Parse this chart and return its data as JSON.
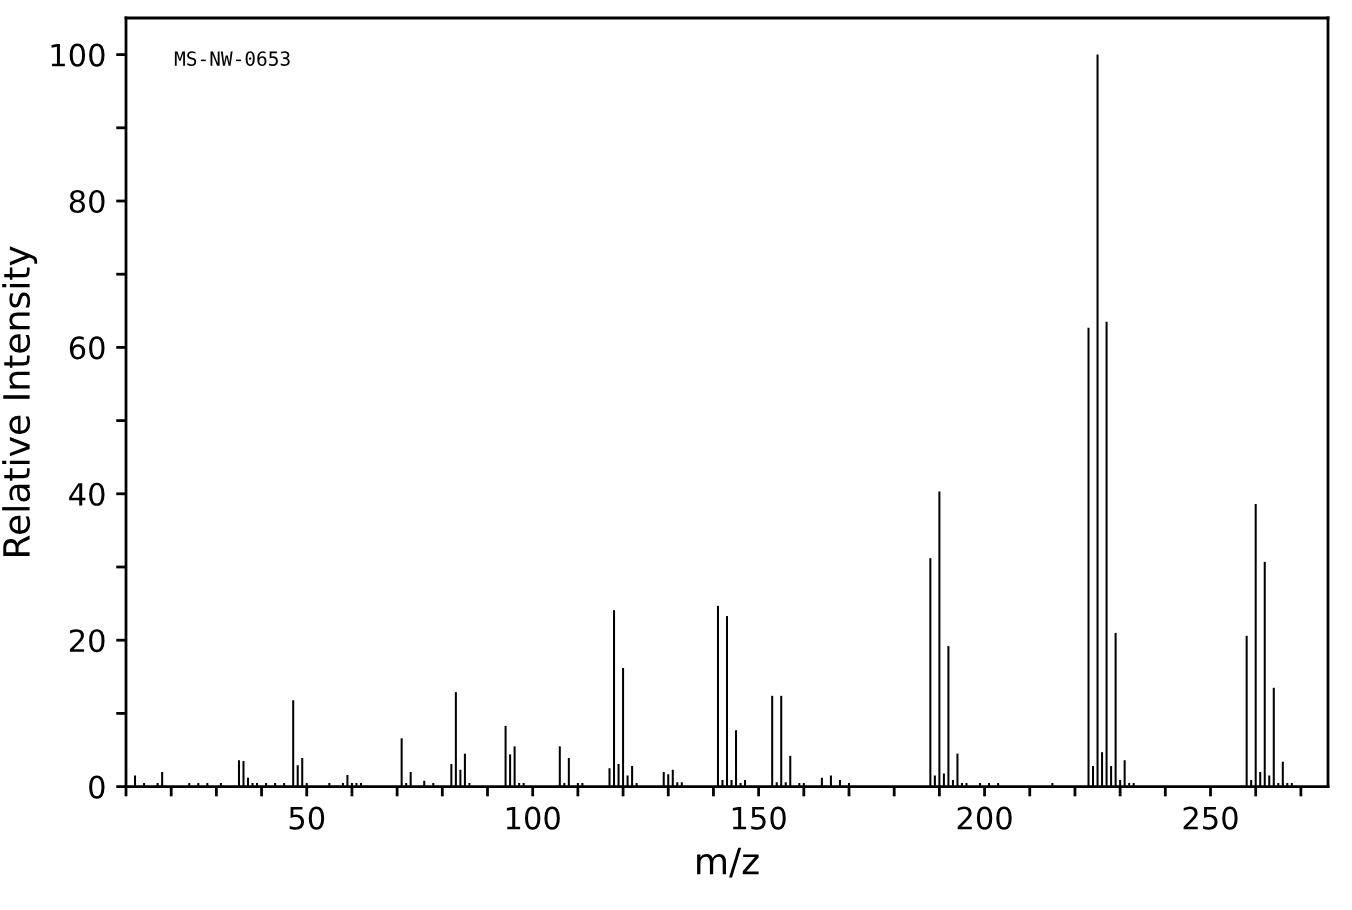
{
  "chart_data": {
    "type": "bar",
    "xlabel": "m/z",
    "ylabel": "Relative Intensity",
    "annotations": [
      "MS-NW-0653"
    ],
    "x": [
      12,
      14,
      17,
      18,
      24,
      26,
      28,
      31,
      35,
      36,
      37,
      38,
      39,
      41,
      43,
      45,
      47,
      48,
      49,
      50,
      55,
      58,
      59,
      60,
      61,
      62,
      71,
      72,
      73,
      76,
      78,
      82,
      83,
      84,
      85,
      86,
      94,
      95,
      96,
      97,
      98,
      106,
      107,
      108,
      110,
      111,
      117,
      118,
      119,
      120,
      121,
      122,
      123,
      129,
      130,
      131,
      132,
      133,
      141,
      142,
      143,
      144,
      145,
      146,
      147,
      153,
      154,
      155,
      156,
      157,
      159,
      160,
      164,
      166,
      168,
      170,
      188,
      189,
      190,
      191,
      192,
      193,
      194,
      195,
      196,
      199,
      201,
      203,
      215,
      223,
      224,
      225,
      226,
      227,
      228,
      229,
      230,
      231,
      232,
      233,
      258,
      259,
      260,
      261,
      262,
      263,
      264,
      265,
      266,
      267,
      268
    ],
    "values": [
      1.5,
      0.5,
      0.5,
      2.0,
      0.5,
      0.5,
      0.5,
      0.5,
      3.6,
      3.5,
      1.2,
      0.5,
      0.5,
      0.5,
      0.5,
      0.5,
      11.8,
      2.9,
      3.9,
      0.5,
      0.5,
      0.5,
      1.6,
      0.5,
      0.5,
      0.5,
      6.6,
      0.5,
      2.0,
      0.8,
      0.5,
      3.1,
      12.9,
      2.3,
      4.5,
      0.5,
      8.3,
      4.4,
      5.5,
      0.5,
      0.5,
      5.5,
      0.5,
      3.9,
      0.5,
      0.5,
      2.5,
      24.1,
      3.1,
      16.2,
      1.5,
      2.8,
      0.5,
      2.0,
      1.7,
      2.3,
      0.6,
      0.6,
      24.7,
      0.9,
      23.3,
      0.9,
      7.7,
      0.5,
      0.9,
      12.4,
      0.6,
      12.4,
      0.6,
      4.2,
      0.5,
      0.5,
      1.2,
      1.5,
      0.9,
      0.5,
      31.2,
      1.5,
      40.3,
      1.8,
      19.2,
      0.9,
      4.5,
      0.5,
      0.5,
      0.5,
      0.5,
      0.5,
      0.5,
      62.7,
      2.8,
      100,
      4.7,
      63.5,
      2.8,
      21.0,
      0.9,
      3.6,
      0.5,
      0.5,
      20.6,
      0.9,
      38.6,
      2.0,
      30.7,
      1.5,
      13.5,
      0.5,
      3.4,
      0.5,
      0.5
    ],
    "color": "#000000",
    "xlim": [
      10,
      276
    ],
    "xticks": [
      {
        "value": 10,
        "label": null
      },
      {
        "value": 20,
        "label": null
      },
      {
        "value": 30,
        "label": null
      },
      {
        "value": 40,
        "label": null
      },
      50,
      {
        "value": 60,
        "label": null
      },
      {
        "value": 70,
        "label": null
      },
      {
        "value": 80,
        "label": null
      },
      {
        "value": 90,
        "label": null
      },
      100,
      {
        "value": 110,
        "label": null
      },
      {
        "value": 120,
        "label": null
      },
      {
        "value": 130,
        "label": null
      },
      {
        "value": 140,
        "label": null
      },
      150,
      {
        "value": 160,
        "label": null
      },
      {
        "value": 170,
        "label": null
      },
      {
        "value": 180,
        "label": null
      },
      {
        "value": 190,
        "label": null
      },
      200,
      {
        "value": 210,
        "label": null
      },
      {
        "value": 220,
        "label": null
      },
      {
        "value": 230,
        "label": null
      },
      {
        "value": 240,
        "label": null
      },
      250,
      {
        "value": 260,
        "label": null
      },
      {
        "value": 270,
        "label": null
      }
    ],
    "ylim": [
      0,
      105
    ],
    "yticks": [
      0,
      {
        "value": 10,
        "label": null
      },
      20,
      {
        "value": 30,
        "label": null
      },
      40,
      {
        "value": 50,
        "label": null
      },
      60,
      {
        "value": 70,
        "label": null
      },
      80,
      {
        "value": 90,
        "label": null
      },
      100
    ],
    "grid": false
  }
}
